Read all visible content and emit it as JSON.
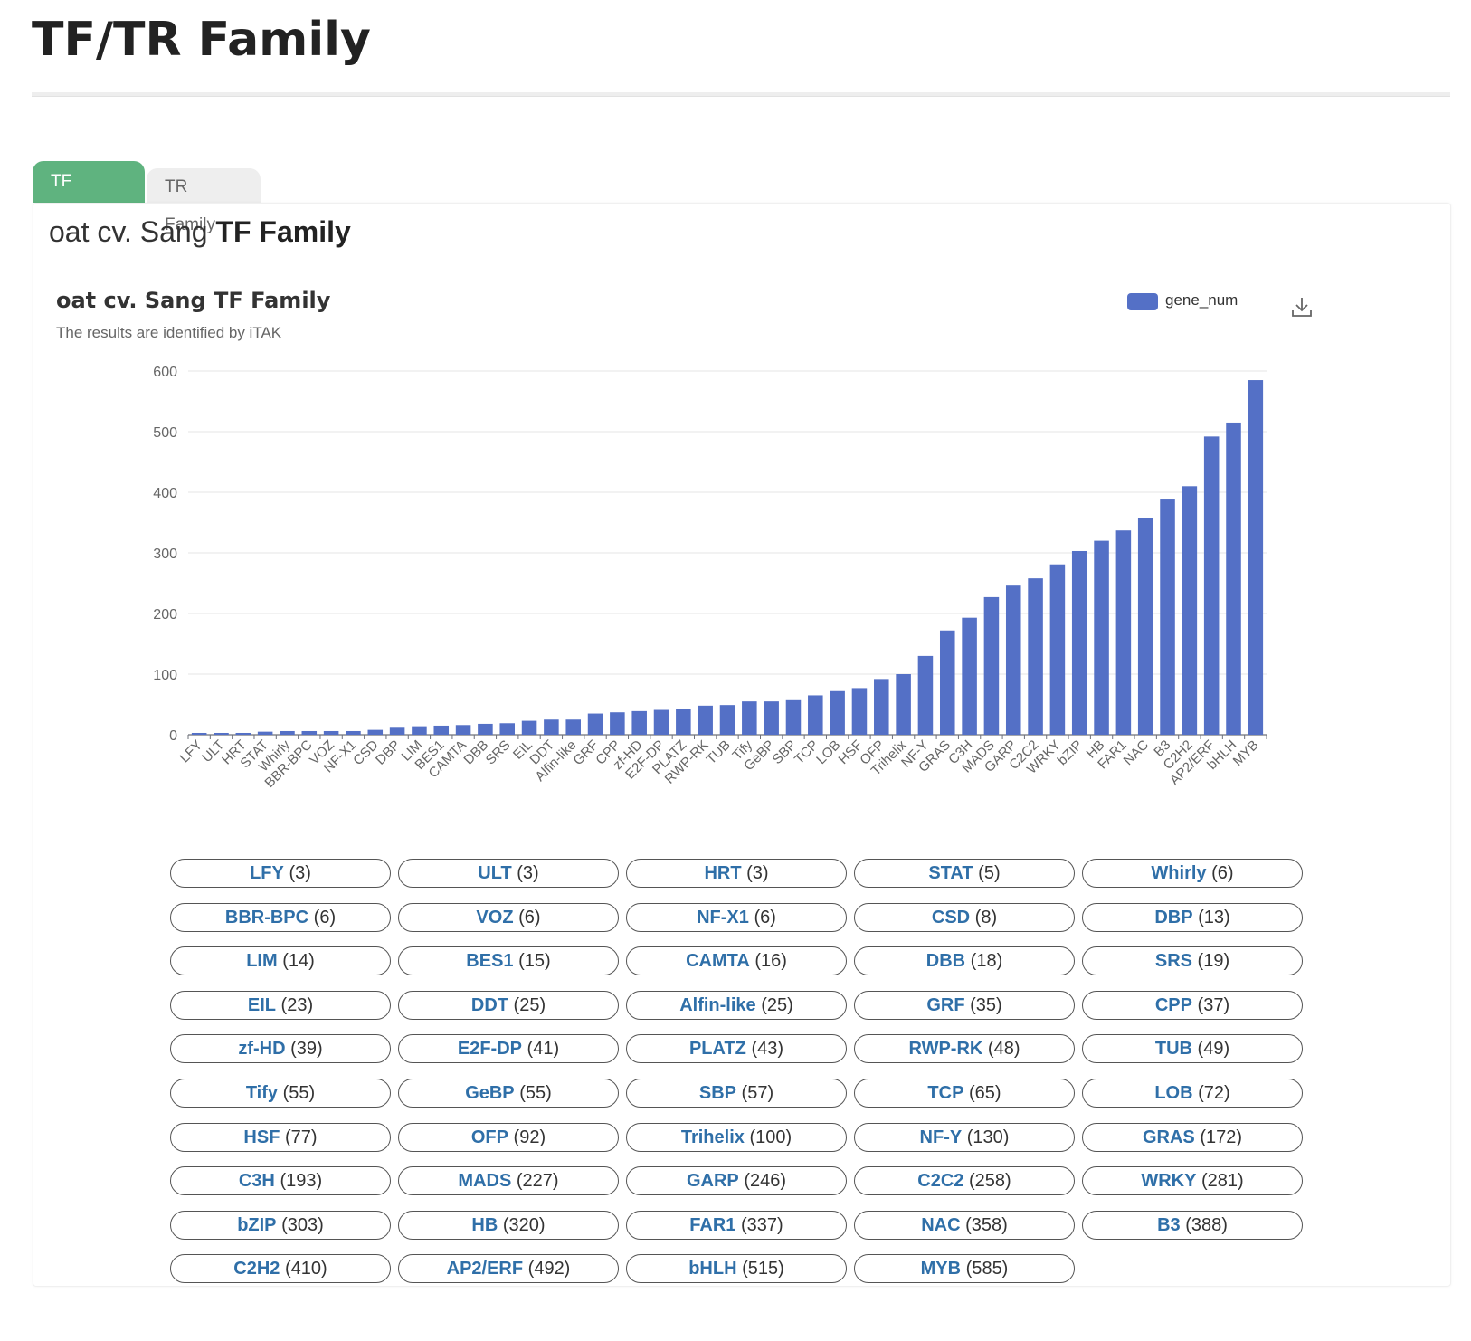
{
  "page": {
    "title": "TF/TR Family"
  },
  "tabs": [
    {
      "label": "TF Family",
      "active": true
    },
    {
      "label": "TR Family",
      "active": false
    }
  ],
  "panel": {
    "title_prefix": "oat cv. Sang",
    "title_bold": "TF Family"
  },
  "chart_data": {
    "type": "bar",
    "title": "oat cv. Sang TF Family",
    "subtitle": "The results are identified by iTAK",
    "legend": {
      "position": "top-right",
      "entries": [
        "gene_num"
      ]
    },
    "ylim": [
      0,
      600
    ],
    "yticks": [
      0,
      100,
      200,
      300,
      400,
      500,
      600
    ],
    "grid": true,
    "bar_color": "#5470c6",
    "categories": [
      "LFY",
      "ULT",
      "HRT",
      "STAT",
      "Whirly",
      "BBR-BPC",
      "VOZ",
      "NF-X1",
      "CSD",
      "DBP",
      "LIM",
      "BES1",
      "CAMTA",
      "DBB",
      "SRS",
      "EIL",
      "DDT",
      "Alfin-like",
      "GRF",
      "CPP",
      "zf-HD",
      "E2F-DP",
      "PLATZ",
      "RWP-RK",
      "TUB",
      "Tify",
      "GeBP",
      "SBP",
      "TCP",
      "LOB",
      "HSF",
      "OFP",
      "Trihelix",
      "NF-Y",
      "GRAS",
      "C3H",
      "MADS",
      "GARP",
      "C2C2",
      "WRKY",
      "bZIP",
      "HB",
      "FAR1",
      "NAC",
      "B3",
      "C2H2",
      "AP2/ERF",
      "bHLH",
      "MYB"
    ],
    "series": [
      {
        "name": "gene_num",
        "values": [
          3,
          3,
          3,
          5,
          6,
          6,
          6,
          6,
          8,
          13,
          14,
          15,
          16,
          18,
          19,
          23,
          25,
          25,
          35,
          37,
          39,
          41,
          43,
          48,
          49,
          55,
          55,
          57,
          65,
          72,
          77,
          92,
          100,
          130,
          172,
          193,
          227,
          246,
          258,
          281,
          303,
          320,
          337,
          358,
          388,
          410,
          492,
          515,
          585
        ]
      }
    ]
  },
  "families": [
    {
      "name": "LFY",
      "count": "(3)"
    },
    {
      "name": "ULT",
      "count": "(3)"
    },
    {
      "name": "HRT",
      "count": "(3)"
    },
    {
      "name": "STAT",
      "count": "(5)"
    },
    {
      "name": "Whirly",
      "count": "(6)"
    },
    {
      "name": "BBR-BPC",
      "count": "(6)"
    },
    {
      "name": "VOZ",
      "count": "(6)"
    },
    {
      "name": "NF-X1",
      "count": "(6)"
    },
    {
      "name": "CSD",
      "count": "(8)"
    },
    {
      "name": "DBP",
      "count": "(13)"
    },
    {
      "name": "LIM",
      "count": "(14)"
    },
    {
      "name": "BES1",
      "count": "(15)"
    },
    {
      "name": "CAMTA",
      "count": "(16)"
    },
    {
      "name": "DBB",
      "count": "(18)"
    },
    {
      "name": "SRS",
      "count": "(19)"
    },
    {
      "name": "EIL",
      "count": "(23)"
    },
    {
      "name": "DDT",
      "count": "(25)"
    },
    {
      "name": "Alfin-like",
      "count": "(25)"
    },
    {
      "name": "GRF",
      "count": "(35)"
    },
    {
      "name": "CPP",
      "count": "(37)"
    },
    {
      "name": "zf-HD",
      "count": "(39)"
    },
    {
      "name": "E2F-DP",
      "count": "(41)"
    },
    {
      "name": "PLATZ",
      "count": "(43)"
    },
    {
      "name": "RWP-RK",
      "count": "(48)"
    },
    {
      "name": "TUB",
      "count": "(49)"
    },
    {
      "name": "Tify",
      "count": "(55)"
    },
    {
      "name": "GeBP",
      "count": "(55)"
    },
    {
      "name": "SBP",
      "count": "(57)"
    },
    {
      "name": "TCP",
      "count": "(65)"
    },
    {
      "name": "LOB",
      "count": "(72)"
    },
    {
      "name": "HSF",
      "count": "(77)"
    },
    {
      "name": "OFP",
      "count": "(92)"
    },
    {
      "name": "Trihelix",
      "count": "(100)"
    },
    {
      "name": "NF-Y",
      "count": "(130)"
    },
    {
      "name": "GRAS",
      "count": "(172)"
    },
    {
      "name": "C3H",
      "count": "(193)"
    },
    {
      "name": "MADS",
      "count": "(227)"
    },
    {
      "name": "GARP",
      "count": "(246)"
    },
    {
      "name": "C2C2",
      "count": "(258)"
    },
    {
      "name": "WRKY",
      "count": "(281)"
    },
    {
      "name": "bZIP",
      "count": "(303)"
    },
    {
      "name": "HB",
      "count": "(320)"
    },
    {
      "name": "FAR1",
      "count": "(337)"
    },
    {
      "name": "NAC",
      "count": "(358)"
    },
    {
      "name": "B3",
      "count": "(388)"
    },
    {
      "name": "C2H2",
      "count": "(410)"
    },
    {
      "name": "AP2/ERF",
      "count": "(492)"
    },
    {
      "name": "bHLH",
      "count": "(515)"
    },
    {
      "name": "MYB",
      "count": "(585)"
    }
  ],
  "icons": {
    "download": "download-icon"
  }
}
